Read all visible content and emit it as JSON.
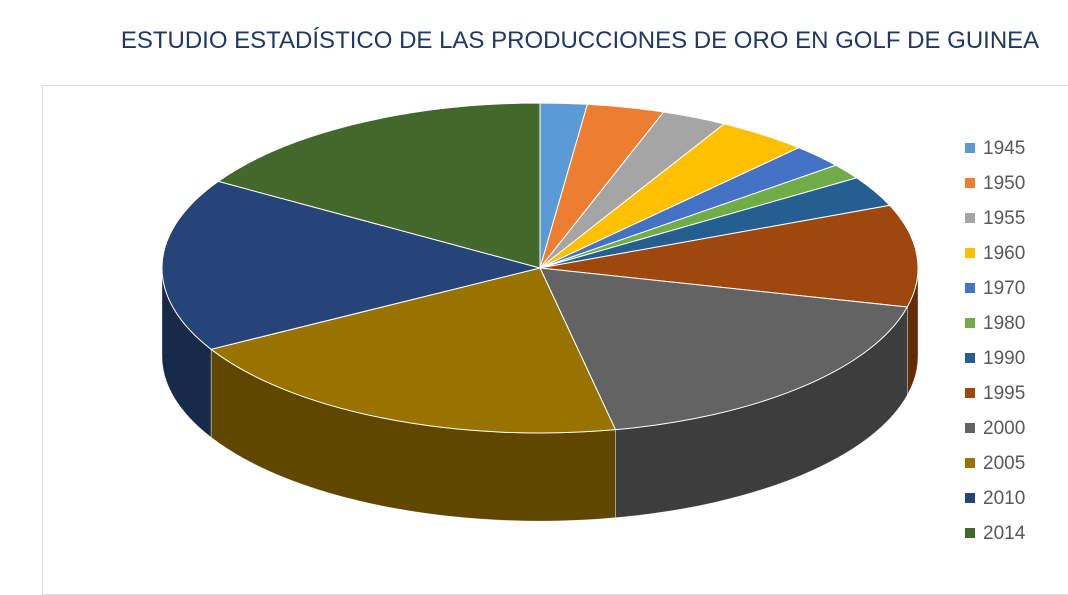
{
  "chart_data": {
    "type": "pie3d",
    "title": "ESTUDIO ESTADÍSTICO DE LAS PRODUCCIONES DE ORO  EN GOLF DE GUINEA",
    "categories": [
      "1945",
      "1950",
      "1955",
      "1960",
      "1970",
      "1980",
      "1990",
      "1995",
      "2000",
      "2005",
      "2010",
      "2014"
    ],
    "values": [
      2,
      3.3,
      2.8,
      3.9,
      2.3,
      1.5,
      3,
      10,
      18,
      20,
      17,
      16.2
    ],
    "colors": [
      "#5b9bd5",
      "#ed7d31",
      "#a5a5a5",
      "#ffc000",
      "#4472c4",
      "#70ad47",
      "#255e91",
      "#9e480e",
      "#636363",
      "#997300",
      "#264478",
      "#43682b"
    ],
    "legend": "right"
  }
}
